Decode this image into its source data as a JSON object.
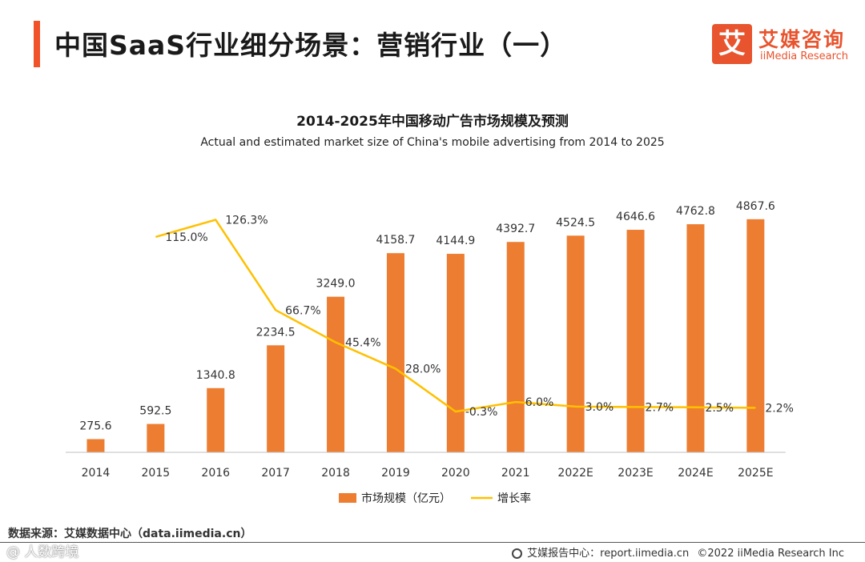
{
  "header": {
    "title": "中国SaaS行业细分场景：营销行业（一）",
    "logo_mark": "艾",
    "logo_cn": "艾媒咨询",
    "logo_en": "iiMedia Research"
  },
  "chart": {
    "title": "2014-2025年中国移动广告市场规模及预测",
    "subtitle": "Actual and estimated market size of China's mobile advertising from 2014 to 2025"
  },
  "colors": {
    "bar": "#ed7d31",
    "line": "#ffc000",
    "accent": "#f0532a"
  },
  "chart_data": {
    "type": "bar",
    "title": "2014-2025年中国移动广告市场规模及预测",
    "categories": [
      "2014",
      "2015",
      "2016",
      "2017",
      "2018",
      "2019",
      "2020",
      "2021",
      "2022E",
      "2023E",
      "2024E",
      "2025E"
    ],
    "series": [
      {
        "name": "市场规模（亿元）",
        "kind": "bar",
        "values": [
          275.6,
          592.5,
          1340.8,
          2234.5,
          3249.0,
          4158.7,
          4144.9,
          4392.7,
          4524.5,
          4646.6,
          4762.8,
          4867.6
        ],
        "labels": [
          "275.6",
          "592.5",
          "1340.8",
          "2234.5",
          "3249.0",
          "4158.7",
          "4144.9",
          "4392.7",
          "4524.5",
          "4646.6",
          "4762.8",
          "4867.6"
        ]
      },
      {
        "name": "增长率",
        "kind": "line",
        "values": [
          null,
          115.0,
          126.3,
          66.7,
          45.4,
          28.0,
          -0.3,
          6.0,
          3.0,
          2.7,
          2.5,
          2.2
        ],
        "labels": [
          "",
          "115.0%",
          "126.3%",
          "66.7%",
          "45.4%",
          "28.0%",
          "-0.3%",
          "6.0%",
          "3.0%",
          "2.7%",
          "2.5%",
          "2.2%"
        ]
      }
    ],
    "ylim_bar": [
      0,
      5600
    ],
    "ylim_line": [
      -5,
      142
    ],
    "grid": false,
    "legend": "bottom-center"
  },
  "legend": {
    "bar_label": "市场规模（亿元）",
    "line_label": "增长率"
  },
  "footer": {
    "source": "数据来源：艾媒数据中心（data.iimedia.cn）",
    "watermark": "@ 人数跨境",
    "report_center": "艾媒报告中心：report.iimedia.cn",
    "copyright": "©2022 iiMedia Research Inc"
  }
}
